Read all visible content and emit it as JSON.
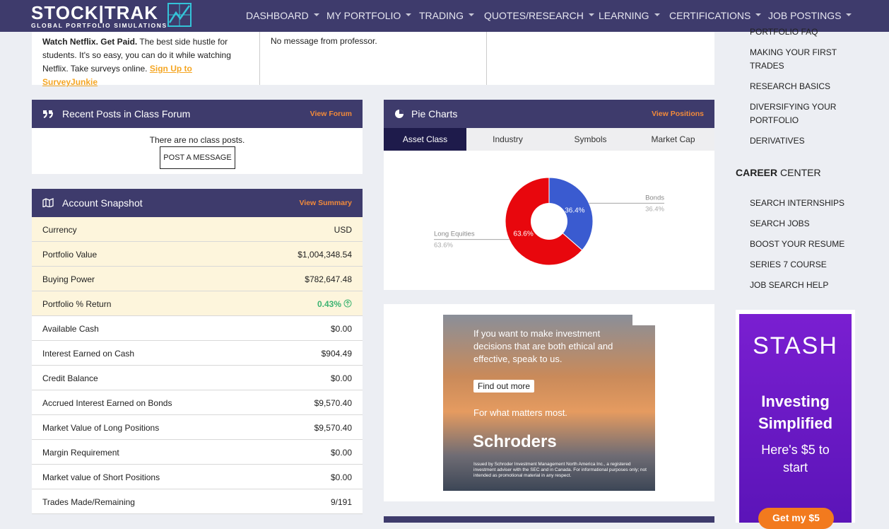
{
  "navbar": {
    "logo": "STOCK|TRAK",
    "logo_subtitle": "GLOBAL PORTFOLIO SIMULATIONS",
    "items": [
      "DASHBOARD",
      "MY PORTFOLIO",
      "TRADING",
      "QUOTES/RESEARCH",
      "LEARNING",
      "CERTIFICATIONS",
      "JOB POSTINGS"
    ]
  },
  "top_cards": {
    "promo_bold": "Watch Netflix. Get Paid.",
    "promo_text": "The best side hustle for students. It's so easy, you can do it while watching Netflix. Take surveys online.",
    "promo_link": "Sign Up to SurveyJunkie",
    "professor_message": "No message from professor."
  },
  "forum": {
    "title": "Recent Posts in Class Forum",
    "link": "View Forum",
    "empty_text": "There are no class posts.",
    "button": "POST A MESSAGE"
  },
  "snapshot": {
    "title": "Account Snapshot",
    "link": "View Summary",
    "rows": [
      [
        "Currency",
        "USD"
      ],
      [
        "Portfolio Value",
        "$1,004,348.54"
      ],
      [
        "Buying Power",
        "$782,647.48"
      ],
      [
        "Portfolio % Return",
        "0.43%"
      ],
      [
        "Available Cash",
        "$0.00"
      ],
      [
        "Interest Earned on Cash",
        "$904.49"
      ],
      [
        "Credit Balance",
        "$0.00"
      ],
      [
        "Accrued Interest Earned on Bonds",
        "$9,570.40"
      ],
      [
        "Market Value of Long Positions",
        "$9,570.40"
      ],
      [
        "Margin Requirement",
        "$0.00"
      ],
      [
        "Market value of Short Positions",
        "$0.00"
      ],
      [
        "Trades Made/Remaining",
        "9/191"
      ]
    ]
  },
  "pie_panel": {
    "title": "Pie Charts",
    "link": "View Positions",
    "tabs": [
      "Asset Class",
      "Industry",
      "Symbols",
      "Market Cap"
    ],
    "active_tab": 0,
    "chart_data": {
      "type": "pie",
      "categories": [
        "Bonds",
        "Long Equities"
      ],
      "values": [
        36.4,
        63.6
      ],
      "value_labels": [
        "36.4%",
        "63.6%"
      ],
      "colors": [
        "#3a5bd0",
        "#e8070d"
      ]
    }
  },
  "ad": {
    "headline": "If you want to make investment decisions that are both ethical and effective, speak to us.",
    "button": "Find out more",
    "tagline": "For what matters most.",
    "brand": "Schroders",
    "disclaimer": "Issued by Schroder Investment Management North America Inc., a registered investment adviser with the SEC and in Canada. For informational purposes only; not intended as promotional material in any respect."
  },
  "sidebar": {
    "learning_links": [
      "PORTFOLIO FAQ",
      "MAKING YOUR FIRST TRADES",
      "RESEARCH BASICS",
      "DIVERSIFYING YOUR PORTFOLIO",
      "DERIVATIVES"
    ],
    "career_bold": "CAREER",
    "career_rest": "CENTER",
    "career_links": [
      "SEARCH INTERNSHIPS",
      "SEARCH JOBS",
      "BOOST YOUR RESUME",
      "SERIES 7 COURSE",
      "JOB SEARCH HELP"
    ]
  },
  "stash_ad": {
    "brand": "STASH",
    "headline": "Investing Simplified",
    "subtext": "Here's $5 to start",
    "button": "Get my $5"
  }
}
